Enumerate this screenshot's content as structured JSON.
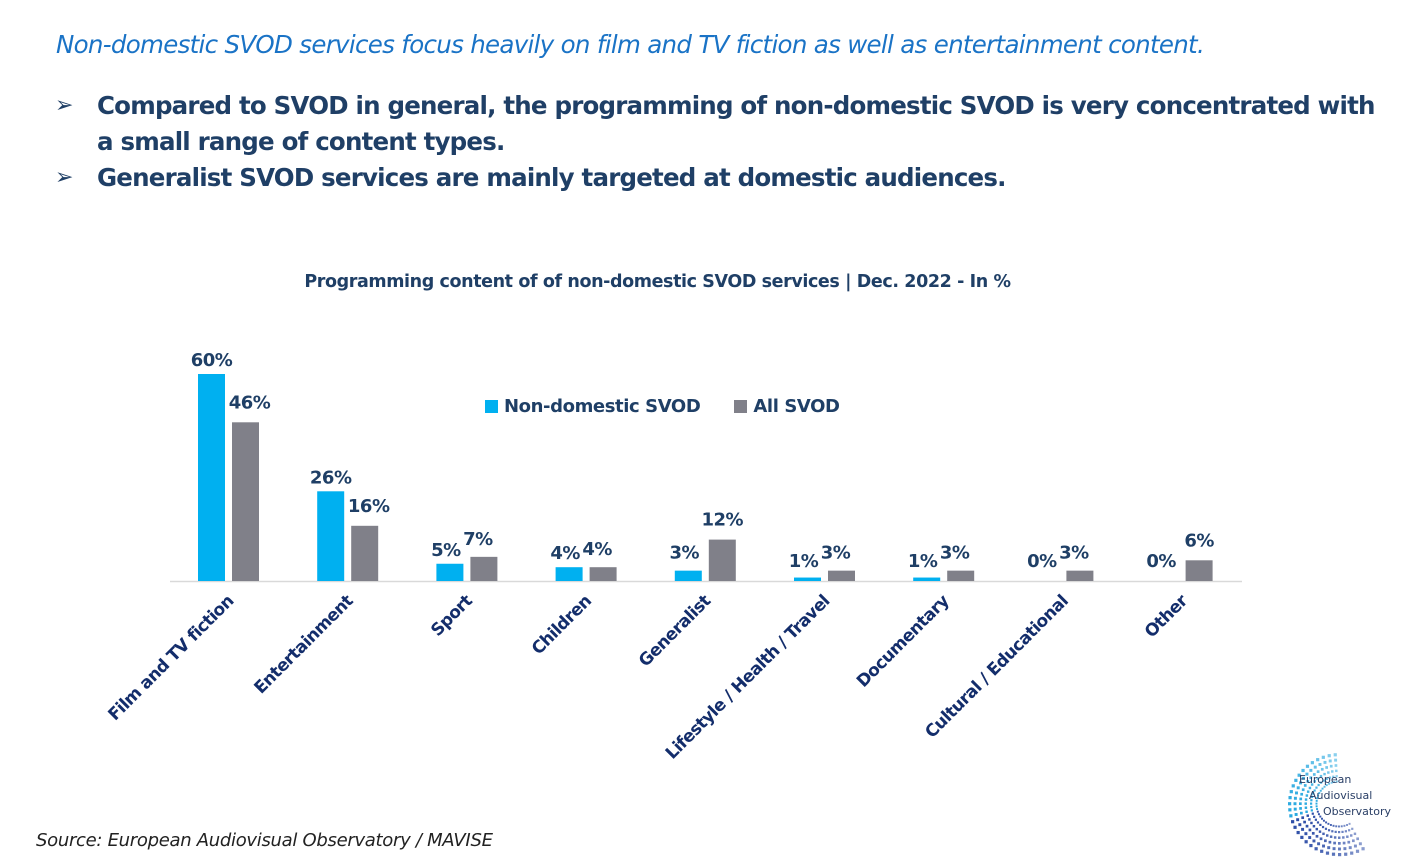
{
  "headline": "Non-domestic SVOD services focus heavily on film and TV fiction as well as entertainment content.",
  "bullets": [
    {
      "icon": "arrow-bullet-icon",
      "glyph": "➢",
      "text": "Compared to SVOD in general, the programming of non-domestic SVOD is very concentrated with a small range of content types."
    },
    {
      "icon": "arrow-bullet-icon",
      "glyph": "➢",
      "text": "Generalist SVOD services are mainly targeted at domestic audiences."
    }
  ],
  "source": "Source: European Audiovisual Observatory / MAVISE",
  "logo": {
    "line1": "European",
    "line2": "Audiovisual",
    "line3": "Observatory"
  },
  "colors": {
    "non_domestic": "#00b0f0",
    "all_svod": "#808089",
    "text_dark": "#1f3f66",
    "label_navy": "#132d6b",
    "headline_blue": "#1a73c6"
  },
  "chart_data": {
    "type": "bar",
    "title": "Programming content of of non-domestic SVOD services | Dec. 2022 - In %",
    "xlabel": "",
    "ylabel": "",
    "ylim": [
      0,
      60
    ],
    "grid": false,
    "legend_position": "top-center",
    "categories": [
      "Film and TV fiction",
      "Entertainment",
      "Sport",
      "Children",
      "Generalist",
      "Lifestyle / Health / Travel",
      "Documentary",
      "Cultural / Educational",
      "Other"
    ],
    "series": [
      {
        "name": "Non-domestic SVOD",
        "values": [
          60,
          26,
          5,
          4,
          3,
          1,
          1,
          0,
          0
        ],
        "labels": [
          "60%",
          "26%",
          "5%",
          "4%",
          "3%",
          "1%",
          "1%",
          "0%",
          "0%"
        ]
      },
      {
        "name": "All SVOD",
        "values": [
          46,
          16,
          7,
          4,
          12,
          3,
          3,
          3,
          6
        ],
        "labels": [
          "46%",
          "16%",
          "7%",
          "4%",
          "12%",
          "3%",
          "3%",
          "3%",
          "6%"
        ]
      }
    ]
  }
}
